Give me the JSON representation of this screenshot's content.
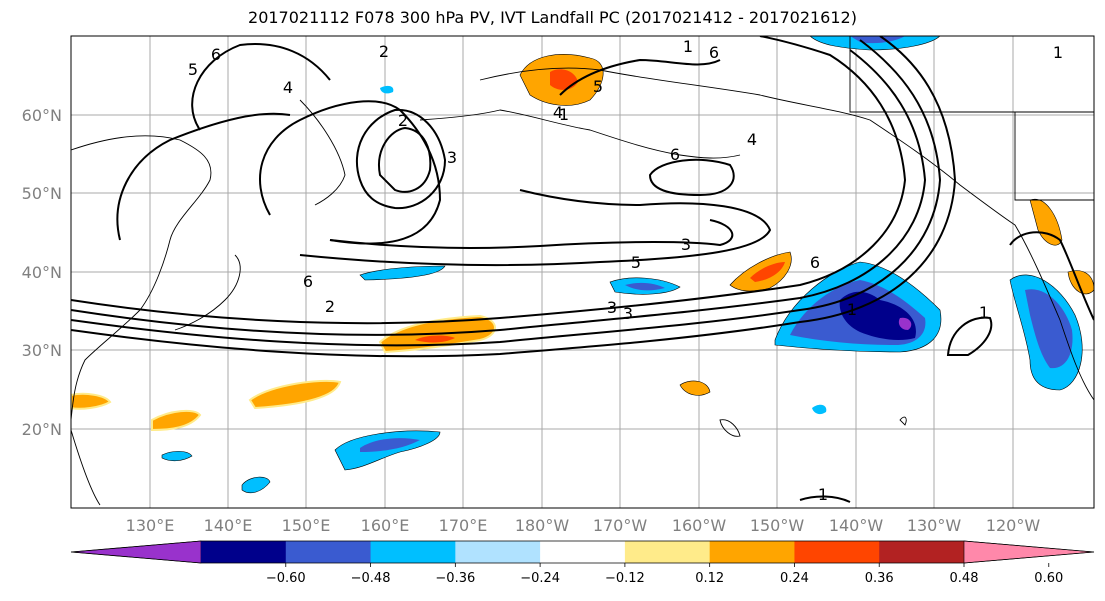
{
  "title": "2017021112 F078 300 hPa PV, IVT Landfall PC (2017021412 - 2017021612)",
  "lat_labels": [
    "60°N",
    "50°N",
    "40°N",
    "30°N",
    "20°N"
  ],
  "lon_labels": [
    "130°E",
    "140°E",
    "150°E",
    "160°E",
    "170°E",
    "180°W",
    "170°W",
    "160°W",
    "150°W",
    "140°W",
    "130°W",
    "120°W"
  ],
  "colorbar": {
    "colors": [
      "#9932cc",
      "#00008b",
      "#3a5bd0",
      "#00bfff",
      "#b0e2ff",
      "#ffffff",
      "#ffeb8a",
      "#ffa500",
      "#ff4500",
      "#b22222",
      "#ff88aa"
    ],
    "tick_labels": [
      "−0.60",
      "−0.48",
      "−0.36",
      "−0.24",
      "−0.12",
      "0.12",
      "0.24",
      "0.36",
      "0.48",
      "0.60"
    ]
  },
  "contour_labels": [
    "6",
    "5",
    "4",
    "2",
    "1",
    "6",
    "5",
    "4",
    "3",
    "2",
    "6",
    "3",
    "3",
    "5",
    "6",
    "6",
    "4",
    "3",
    "2",
    "1",
    "1",
    "1",
    "1",
    "1"
  ]
}
